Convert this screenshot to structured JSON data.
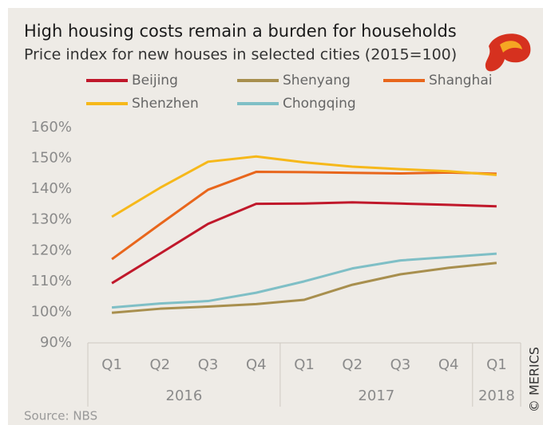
{
  "chart_data": {
    "type": "line",
    "title": "High housing costs remain a burden for households",
    "subtitle": "Price index for new houses in selected cities (2015=100)",
    "categories": [
      "Q1",
      "Q2",
      "Q3",
      "Q4",
      "Q1",
      "Q2",
      "Q3",
      "Q4",
      "Q1"
    ],
    "x_groups": [
      {
        "label": "2016",
        "start": 0,
        "end": 3
      },
      {
        "label": "2017",
        "start": 4,
        "end": 7
      },
      {
        "label": "2018",
        "start": 8,
        "end": 8
      }
    ],
    "series": [
      {
        "name": "Beijing",
        "color": "#c0182b",
        "values": [
          109.4,
          119,
          128.7,
          135.2,
          135.3,
          135.7,
          135.3,
          134.9,
          134.4
        ]
      },
      {
        "name": "Shenyang",
        "color": "#a88f4e",
        "values": [
          99.8,
          101.1,
          101.8,
          102.6,
          104,
          108.9,
          112.3,
          114.4,
          116
        ]
      },
      {
        "name": "Shanghai",
        "color": "#e8661c",
        "values": [
          117.2,
          128.6,
          139.8,
          145.6,
          145.5,
          145.3,
          145.1,
          145.4,
          145
        ]
      },
      {
        "name": "Shenzhen",
        "color": "#f6b81a",
        "values": [
          131,
          140.4,
          148.9,
          150.6,
          148.7,
          147.3,
          146.5,
          145.8,
          144.6
        ]
      },
      {
        "name": "Chongqing",
        "color": "#7fbfc6",
        "values": [
          101.5,
          102.8,
          103.6,
          106.3,
          110,
          114.2,
          116.8,
          117.9,
          119
        ]
      }
    ],
    "ylim": [
      90,
      160
    ],
    "yticks": [
      {
        "value": 90,
        "label": "90%"
      },
      {
        "value": 100,
        "label": "100%"
      },
      {
        "value": 110,
        "label": "110%"
      },
      {
        "value": 120,
        "label": "120%"
      },
      {
        "value": 130,
        "label": "130%"
      },
      {
        "value": 140,
        "label": "140%"
      },
      {
        "value": 150,
        "label": "150%"
      },
      {
        "value": 160,
        "label": "160%"
      }
    ],
    "source": "Source:  NBS",
    "credit": "© MERICS"
  }
}
